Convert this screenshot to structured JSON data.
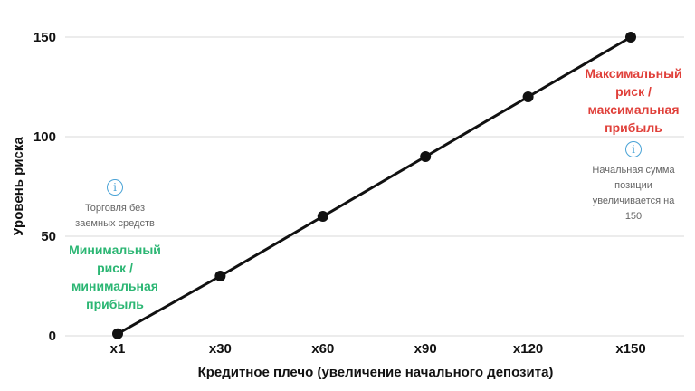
{
  "chart_data": {
    "type": "line",
    "title": "",
    "xlabel": "Кредитное плечо (увеличение начального депозита)",
    "ylabel": "Уровень риска",
    "categories": [
      "x1",
      "x30",
      "x60",
      "x90",
      "x120",
      "x150"
    ],
    "series": [
      {
        "values": [
          1,
          30,
          60,
          90,
          120,
          150
        ]
      }
    ],
    "ylim": [
      0,
      150
    ],
    "yticks": [
      0,
      50,
      100,
      150
    ],
    "grid": true,
    "line_color": "#111111",
    "gridline_color": "#d9d9d9",
    "annotations": {
      "left": {
        "icon": "info-icon",
        "note": [
          "Торговля без",
          "заемных средств"
        ],
        "head": [
          "Минимальный",
          "риск /",
          "минимальная",
          "прибыль"
        ],
        "head_color": "#2bb673"
      },
      "right": {
        "icon": "info-icon",
        "head": [
          "Максимальный",
          "риск /",
          "максимальная",
          "прибыль"
        ],
        "note": [
          "Начальная сумма",
          "позиции",
          "увеличивается на",
          "150"
        ],
        "head_color": "#e0403a"
      }
    }
  }
}
